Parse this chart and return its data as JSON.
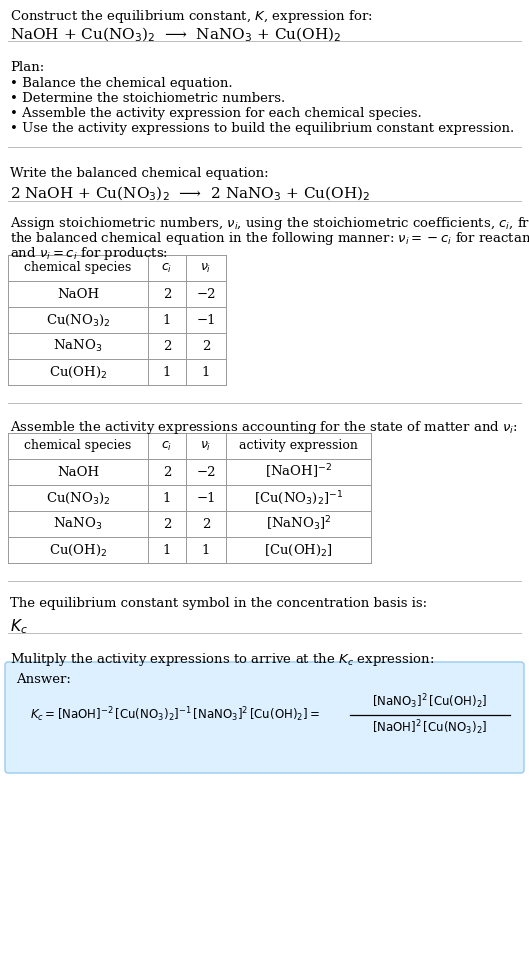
{
  "bg_color": "#ffffff",
  "title_line1": "Construct the equilibrium constant, $K$, expression for:",
  "title_line2": "NaOH + Cu(NO$_3$)$_2$  ⟶  NaNO$_3$ + Cu(OH)$_2$",
  "plan_header": "Plan:",
  "plan_items": [
    "• Balance the chemical equation.",
    "• Determine the stoichiometric numbers.",
    "• Assemble the activity expression for each chemical species.",
    "• Use the activity expressions to build the equilibrium constant expression."
  ],
  "balanced_header": "Write the balanced chemical equation:",
  "balanced_eq": "2 NaOH + Cu(NO$_3$)$_2$  ⟶  2 NaNO$_3$ + Cu(OH)$_2$",
  "table1_cols": [
    "chemical species",
    "$c_i$",
    "$\\nu_i$"
  ],
  "table1_rows": [
    [
      "NaOH",
      "2",
      "−2"
    ],
    [
      "Cu(NO$_3$)$_2$",
      "1",
      "−1"
    ],
    [
      "NaNO$_3$",
      "2",
      "2"
    ],
    [
      "Cu(OH)$_2$",
      "1",
      "1"
    ]
  ],
  "table2_cols": [
    "chemical species",
    "$c_i$",
    "$\\nu_i$",
    "activity expression"
  ],
  "table2_rows": [
    [
      "NaOH",
      "2",
      "−2",
      "[NaOH]$^{-2}$"
    ],
    [
      "Cu(NO$_3$)$_2$",
      "1",
      "−1",
      "[Cu(NO$_3$)$_2$]$^{-1}$"
    ],
    [
      "NaNO$_3$",
      "2",
      "2",
      "[NaNO$_3$]$^2$"
    ],
    [
      "Cu(OH)$_2$",
      "1",
      "1",
      "[Cu(OH)$_2$]"
    ]
  ],
  "kc_header": "The equilibrium constant symbol in the concentration basis is:",
  "kc_symbol": "$K_c$",
  "multiply_header": "Mulitply the activity expressions to arrive at the $K_c$ expression:",
  "answer_box_color": "#ddf0ff",
  "answer_label": "Answer:",
  "assign_header_line1": "Assign stoichiometric numbers, $\\nu_i$, using the stoichiometric coefficients, $c_i$, from",
  "assign_header_line2": "the balanced chemical equation in the following manner: $\\nu_i = -c_i$ for reactants",
  "assign_header_line3": "and $\\nu_i = c_i$ for products:",
  "assemble_header": "Assemble the activity expressions accounting for the state of matter and $\\nu_i$:",
  "line_color": "#bbbbbb",
  "table_line_color": "#999999",
  "font_family": "serif"
}
